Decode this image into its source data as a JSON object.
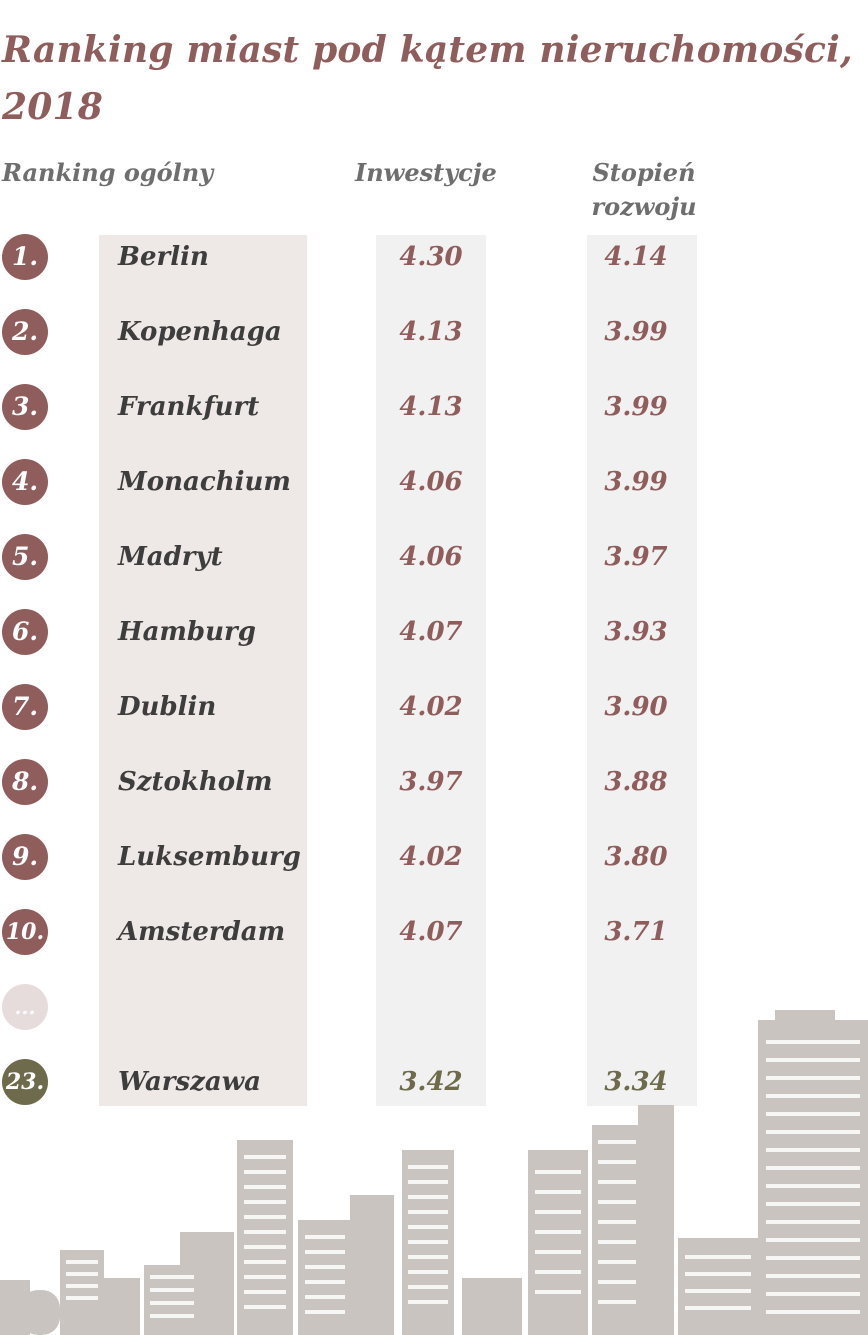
{
  "title": "Ranking miast pod kątem nieruchomości, 2018",
  "headers": {
    "overall": "Ranking ogólny",
    "investment": "Inwestycje",
    "development": "Stopień rozwoju"
  },
  "rows": [
    {
      "rank": "1.",
      "city": "Berlin",
      "investment": "4.30",
      "development": "4.14"
    },
    {
      "rank": "2.",
      "city": "Kopenhaga",
      "investment": "4.13",
      "development": "3.99"
    },
    {
      "rank": "3.",
      "city": "Frankfurt",
      "investment": "4.13",
      "development": "3.99"
    },
    {
      "rank": "4.",
      "city": "Monachium",
      "investment": "4.06",
      "development": "3.99"
    },
    {
      "rank": "5.",
      "city": "Madryt",
      "investment": "4.06",
      "development": "3.97"
    },
    {
      "rank": "6.",
      "city": "Hamburg",
      "investment": "4.07",
      "development": "3.93"
    },
    {
      "rank": "7.",
      "city": "Dublin",
      "investment": "4.02",
      "development": "3.90"
    },
    {
      "rank": "8.",
      "city": "Sztokholm",
      "investment": "3.97",
      "development": "3.88"
    },
    {
      "rank": "9.",
      "city": "Luksemburg",
      "investment": "4.02",
      "development": "3.80"
    },
    {
      "rank": "10.",
      "city": "Amsterdam",
      "investment": "4.07",
      "development": "3.71"
    }
  ],
  "ellipsis": "...",
  "warsaw": {
    "rank": "23.",
    "city": "Warszawa",
    "investment": "3.42",
    "development": "3.34"
  },
  "colors": {
    "accent": "#8f5d5c",
    "warsaw": "#6e6a4c",
    "city_column": "#eee8e6",
    "value_column": "#f1f1f1",
    "skyline": "#c9c4bf"
  },
  "icons": {
    "skyline": "city-skyline-icon"
  }
}
